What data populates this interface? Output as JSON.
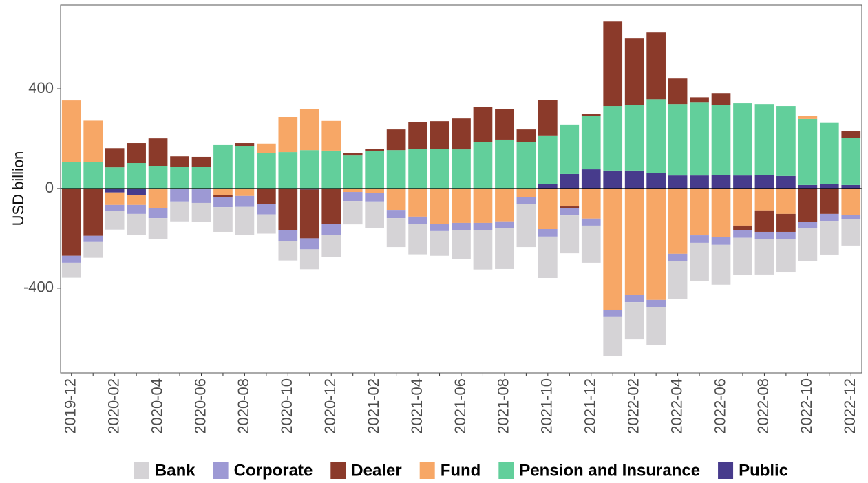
{
  "chart_data": {
    "type": "stacked_bar",
    "y_label": "USD billion",
    "categories": [
      "2019-12",
      null,
      "2020-02",
      null,
      "2020-04",
      null,
      "2020-06",
      null,
      "2020-08",
      null,
      "2020-10",
      null,
      "2020-12",
      null,
      "2021-02",
      null,
      "2021-04",
      null,
      "2021-06",
      null,
      "2021-08",
      null,
      "2021-10",
      null,
      "2021-12",
      null,
      "2022-02",
      null,
      "2022-04",
      null,
      "2022-06",
      null,
      "2022-08",
      null,
      "2022-10",
      null,
      "2022-12"
    ],
    "series": [
      {
        "name": "Bank",
        "color": "#d5d3d6",
        "values": [
          -60,
          -63,
          -74,
          -85,
          -85,
          -80,
          -75,
          -99,
          -113,
          -77,
          -77,
          -80,
          -88,
          -94,
          -108,
          -116,
          -121,
          -99,
          -116,
          -157,
          -163,
          -174,
          -166,
          -152,
          -149,
          -157,
          -149,
          -152,
          -154,
          -152,
          -160,
          -149,
          -141,
          -135,
          -132,
          -135,
          -105
        ]
      },
      {
        "name": "Corporate",
        "color": "#9d99d4",
        "values": [
          -28,
          -25,
          -25,
          -36,
          -39,
          -52,
          -55,
          -39,
          -44,
          -41,
          -44,
          -44,
          -44,
          -36,
          -33,
          -33,
          -30,
          -28,
          -28,
          -30,
          -28,
          -25,
          -30,
          -28,
          -28,
          -30,
          -28,
          -28,
          -28,
          -30,
          -30,
          -30,
          -30,
          -28,
          -25,
          -28,
          -19
        ]
      },
      {
        "name": "Dealer",
        "color": "#8b3a2a",
        "values": [
          -270,
          -190,
          77,
          80,
          110,
          41,
          39,
          -11,
          11,
          -63,
          -168,
          -196,
          -143,
          11,
          11,
          83,
          108,
          110,
          124,
          141,
          124,
          52,
          143,
          -8,
          6,
          339,
          270,
          268,
          102,
          19,
          47,
          -19,
          -86,
          -72,
          -135,
          -102,
          25
        ]
      },
      {
        "name": "Fund",
        "color": "#f7a766",
        "values": [
          248,
          165,
          -50,
          -41,
          -77,
          0,
          0,
          -25,
          -30,
          39,
          141,
          166,
          119,
          -14,
          -19,
          -86,
          -113,
          -143,
          -138,
          -138,
          -132,
          -36,
          -163,
          -72,
          -121,
          -486,
          -428,
          -447,
          -262,
          -188,
          -196,
          -149,
          -88,
          -102,
          11,
          0,
          -105
        ]
      },
      {
        "name": "Pension and Insurance",
        "color": "#62cf9b",
        "values": [
          105,
          107,
          85,
          102,
          91,
          88,
          88,
          174,
          171,
          141,
          146,
          154,
          152,
          132,
          149,
          154,
          157,
          160,
          157,
          185,
          196,
          185,
          196,
          199,
          215,
          259,
          262,
          295,
          287,
          295,
          281,
          290,
          284,
          281,
          265,
          246,
          190
        ]
      },
      {
        "name": "Public",
        "color": "#473b8c",
        "values": [
          0,
          0,
          -16,
          -25,
          -3,
          0,
          -3,
          0,
          0,
          0,
          0,
          -4,
          0,
          0,
          0,
          0,
          1,
          0,
          0,
          0,
          0,
          0,
          17,
          58,
          77,
          72,
          72,
          63,
          52,
          52,
          55,
          52,
          55,
          50,
          14,
          17,
          14
        ]
      }
    ],
    "ylim": [
      -740,
      737
    ],
    "yticks": [
      -400,
      0,
      400
    ],
    "legend": "bottom"
  }
}
